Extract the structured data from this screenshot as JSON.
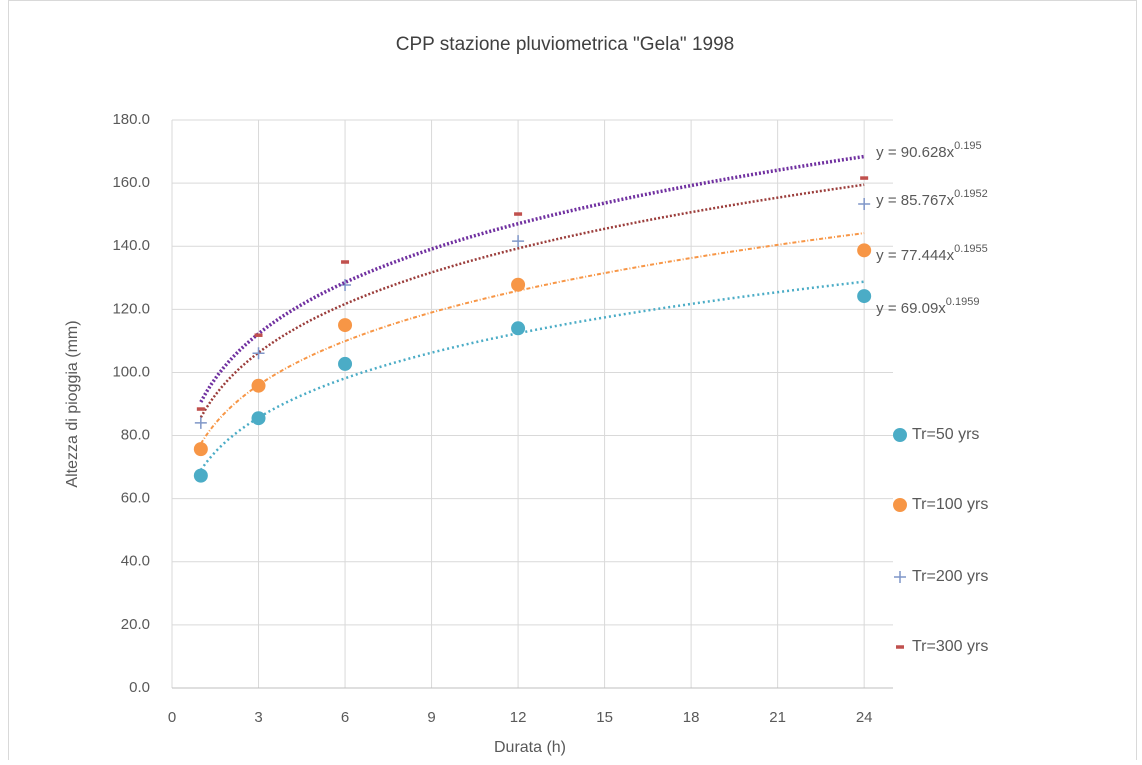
{
  "chart_data": {
    "type": "scatter",
    "title": "CPP stazione pluviometrica \"Gela\" 1998",
    "x_label": "Durata (h)",
    "y_label": "Altezza di pioggia (mm)",
    "xlim": [
      0,
      25
    ],
    "xticks": [
      0,
      3,
      6,
      9,
      12,
      15,
      18,
      21,
      24
    ],
    "ylim": [
      0,
      180
    ],
    "yticks": [
      {
        "value": 0,
        "label": "0.0"
      },
      {
        "value": 20,
        "label": "20.0"
      },
      {
        "value": 40,
        "label": "40.0"
      },
      {
        "value": 60,
        "label": "60.0"
      },
      {
        "value": 80,
        "label": "80.0"
      },
      {
        "value": 100,
        "label": "100.0"
      },
      {
        "value": 120,
        "label": "120.0"
      },
      {
        "value": 140,
        "label": "140.0"
      },
      {
        "value": 160,
        "label": "160.0"
      },
      {
        "value": 180,
        "label": "180.0"
      }
    ],
    "grid": true,
    "legend": "right",
    "x": [
      1,
      3,
      6,
      12,
      24
    ],
    "series": [
      {
        "name": "Tr=50 yrs",
        "color": "#4bacc6",
        "marker": "circle",
        "values": [
          67.3,
          85.5,
          102.7,
          114.0,
          124.2
        ],
        "trendline": {
          "color": "#4bacc6",
          "coefficient": 69.09,
          "exponent": 0.1959,
          "text": "y = 69.09x"
        }
      },
      {
        "name": "Tr=100 yrs",
        "color": "#f79646",
        "marker": "circle",
        "values": [
          75.7,
          95.8,
          115.0,
          127.8,
          138.7
        ],
        "trendline": {
          "color": "#f79646",
          "coefficient": 77.444,
          "exponent": 0.1955,
          "text": "y = 77.444x"
        }
      },
      {
        "name": "Tr=200 yrs",
        "color": "#7f96c8",
        "marker": "plus",
        "values": [
          84.0,
          106.1,
          127.7,
          141.6,
          153.4
        ],
        "trendline": {
          "color": "#9b3d3b",
          "coefficient": 85.767,
          "exponent": 0.1952,
          "text": "y = 85.767x"
        }
      },
      {
        "name": "Tr=300 yrs",
        "color": "#c0504d",
        "marker": "dash",
        "values": [
          88.4,
          111.8,
          135.0,
          150.2,
          161.6
        ],
        "trendline": {
          "color": "#7030a0",
          "coefficient": 90.628,
          "exponent": 0.195,
          "text": "y = 90.628x"
        }
      }
    ]
  }
}
